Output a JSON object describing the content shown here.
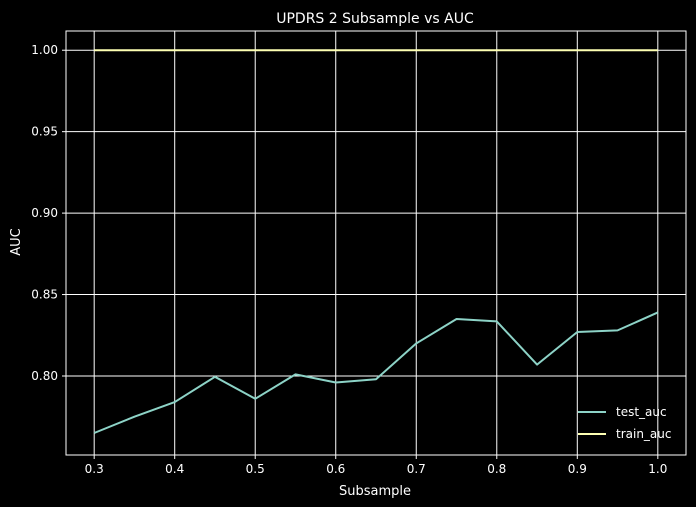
{
  "chart_data": {
    "type": "line",
    "title": "UPDRS 2 Subsample vs AUC",
    "xlabel": "Subsample",
    "ylabel": "AUC",
    "x": [
      0.3,
      0.35,
      0.4,
      0.45,
      0.5,
      0.55,
      0.6,
      0.65,
      0.7,
      0.75,
      0.8,
      0.85,
      0.9,
      0.95,
      1.0
    ],
    "xticks": [
      "0.3",
      "0.4",
      "0.5",
      "0.6",
      "0.7",
      "0.8",
      "0.9",
      "1.0"
    ],
    "yticks": [
      "0.80",
      "0.85",
      "0.90",
      "0.95",
      "1.00"
    ],
    "xlim": [
      0.265,
      1.035
    ],
    "ylim": [
      0.7515,
      1.0118
    ],
    "grid": true,
    "legend_position": "lower-right",
    "series": [
      {
        "name": "test_auc",
        "color": "#8dd3c7",
        "values": [
          0.765,
          0.775,
          0.784,
          0.7995,
          0.786,
          0.801,
          0.796,
          0.798,
          0.82,
          0.835,
          0.8335,
          0.807,
          0.827,
          0.828,
          0.839
        ]
      },
      {
        "name": "train_auc",
        "color": "#feffb3",
        "values": [
          1.0,
          1.0,
          1.0,
          1.0,
          1.0,
          1.0,
          1.0,
          1.0,
          1.0,
          1.0,
          1.0,
          1.0,
          1.0,
          1.0,
          1.0
        ]
      }
    ]
  }
}
